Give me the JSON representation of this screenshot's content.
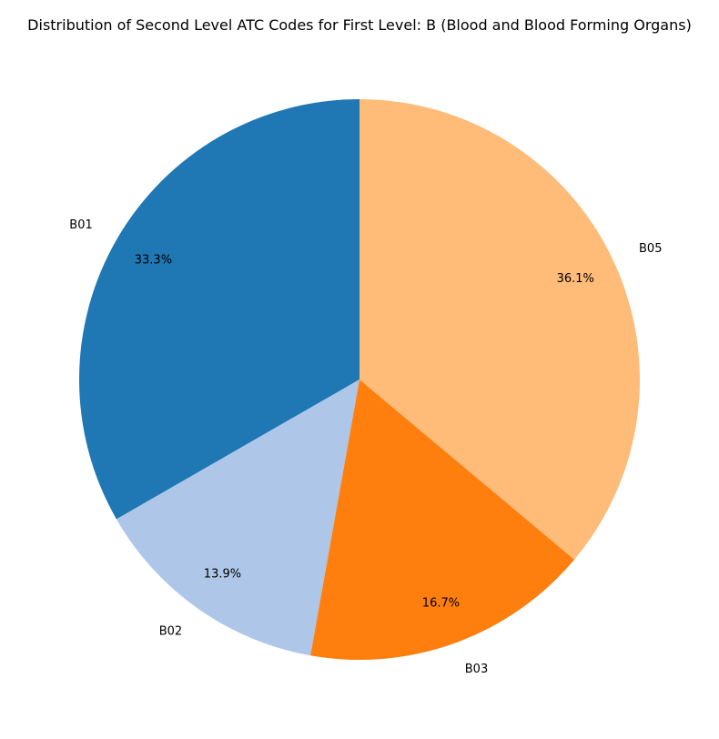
{
  "chart_data": {
    "type": "pie",
    "title": "Distribution of Second Level ATC Codes for First Level: B (Blood and Blood Forming Organs)",
    "categories": [
      "B01",
      "B02",
      "B03",
      "B05"
    ],
    "values": [
      33.3,
      13.9,
      16.7,
      36.1
    ],
    "value_labels": [
      "33.3%",
      "13.9%",
      "16.7%",
      "36.1%"
    ],
    "colors": [
      "#1f77b4",
      "#aec7e8",
      "#ff7f0e",
      "#ffbb78"
    ],
    "start_angle_deg": 90,
    "direction": "counterclockwise"
  }
}
